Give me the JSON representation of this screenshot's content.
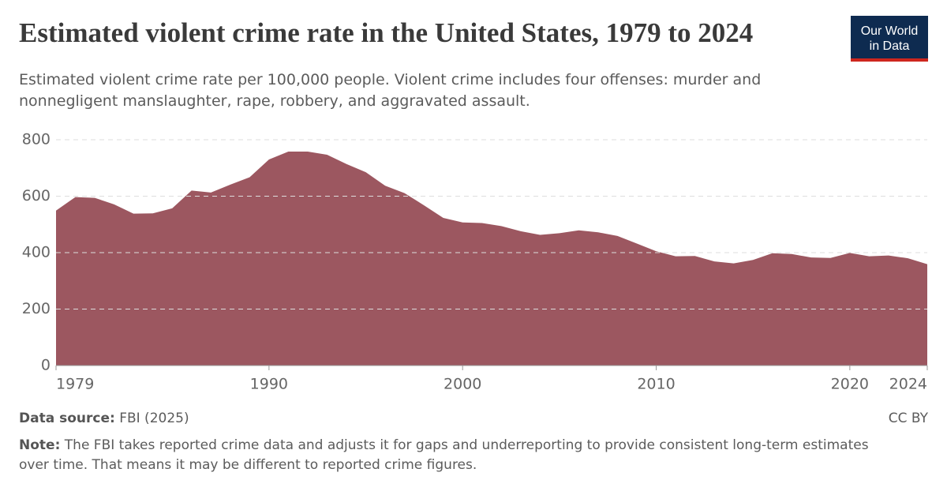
{
  "chart_data": {
    "type": "area",
    "title": "Estimated violent crime rate in the United States, 1979 to 2024",
    "subtitle": "Estimated violent crime rate per 100,000 people. Violent crime includes four offenses: murder and nonnegligent manslaughter, rape, robbery, and aggravated assault.",
    "logo": [
      "Our World",
      "in Data"
    ],
    "source_label": "Data source:",
    "source": "FBI (2025)",
    "license": "CC BY",
    "note_label": "Note:",
    "note": "The FBI takes reported crime data and adjusts it for gaps and underreporting to provide consistent long-term estimates over time. That means it may be different to reported crime figures.",
    "x": [
      1979,
      1980,
      1981,
      1982,
      1983,
      1984,
      1985,
      1986,
      1987,
      1988,
      1989,
      1990,
      1991,
      1992,
      1993,
      1994,
      1995,
      1996,
      1997,
      1998,
      1999,
      2000,
      2001,
      2002,
      2003,
      2004,
      2005,
      2006,
      2007,
      2008,
      2009,
      2010,
      2011,
      2012,
      2013,
      2014,
      2015,
      2016,
      2017,
      2018,
      2019,
      2020,
      2021,
      2022,
      2023,
      2024
    ],
    "values": [
      549,
      597,
      594,
      571,
      538,
      539,
      557,
      620,
      613,
      641,
      667,
      730,
      758,
      758,
      747,
      714,
      685,
      637,
      611,
      568,
      523,
      507,
      505,
      494,
      476,
      463,
      469,
      479,
      472,
      459,
      432,
      405,
      387,
      388,
      369,
      362,
      374,
      398,
      395,
      383,
      381,
      399,
      387,
      390,
      380,
      359
    ],
    "color": "#9c5760",
    "xlim": [
      1979,
      2024
    ],
    "xticks": [
      1979,
      1990,
      2000,
      2010,
      2020,
      2024
    ],
    "ylim": [
      0,
      800
    ],
    "yticks": [
      0,
      200,
      400,
      600,
      800
    ],
    "grid": true
  }
}
